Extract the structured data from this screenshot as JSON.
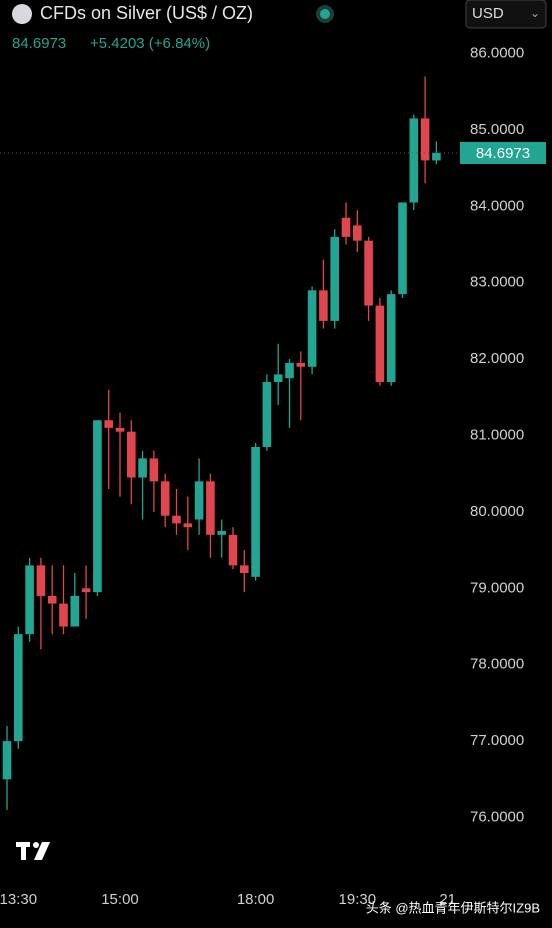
{
  "header": {
    "title": "CFDs on Silver (US$ / OZ)",
    "change": "+5.4203 (+6.84%)",
    "currency": "USD"
  },
  "watermark": "头条 @热血青年伊斯特尔IZ9B",
  "chart_data": {
    "type": "candlestick",
    "categories": [
      null,
      "13:30",
      null,
      null,
      null,
      null,
      null,
      null,
      null,
      null,
      "15:00",
      null,
      null,
      null,
      null,
      null,
      null,
      null,
      null,
      null,
      null,
      null,
      "18:00",
      null,
      null,
      null,
      null,
      null,
      null,
      null,
      null,
      "19:30",
      null,
      null,
      null,
      null,
      null,
      null,
      null,
      "21"
    ],
    "open": [
      76.5,
      77.0,
      78.4,
      79.3,
      78.9,
      78.8,
      78.5,
      79.0,
      78.95,
      81.2,
      81.1,
      81.05,
      80.45,
      80.7,
      80.4,
      79.95,
      79.85,
      79.9,
      80.4,
      79.7,
      79.7,
      79.3,
      79.15,
      80.85,
      81.7,
      81.75,
      81.95,
      81.9,
      82.9,
      82.5,
      83.85,
      83.75,
      83.55,
      82.7,
      81.7,
      82.85,
      84.05,
      85.15,
      84.6,
      null
    ],
    "high": [
      77.2,
      78.5,
      79.4,
      79.4,
      79.3,
      79.3,
      79.2,
      79.3,
      81.2,
      81.6,
      81.3,
      81.2,
      80.8,
      80.8,
      80.5,
      80.3,
      80.2,
      80.7,
      80.5,
      79.9,
      79.8,
      79.5,
      80.9,
      81.8,
      82.2,
      82.0,
      82.1,
      82.95,
      83.3,
      83.7,
      84.05,
      83.95,
      83.6,
      82.8,
      82.9,
      84.05,
      85.2,
      85.7,
      84.85,
      null
    ],
    "low": [
      76.1,
      76.9,
      78.3,
      78.2,
      78.4,
      78.4,
      78.5,
      78.6,
      78.9,
      80.3,
      80.2,
      80.1,
      79.9,
      80.0,
      79.8,
      79.7,
      79.5,
      79.7,
      79.4,
      79.4,
      79.25,
      78.95,
      79.1,
      80.8,
      81.4,
      81.1,
      81.2,
      81.8,
      82.4,
      82.4,
      83.5,
      83.4,
      82.5,
      81.65,
      81.65,
      82.8,
      83.95,
      84.3,
      84.55,
      null
    ],
    "close": [
      77.0,
      78.4,
      79.3,
      78.9,
      78.8,
      78.5,
      78.9,
      78.95,
      81.2,
      81.1,
      81.05,
      80.45,
      80.7,
      80.4,
      79.95,
      79.85,
      79.8,
      80.4,
      79.7,
      79.75,
      79.3,
      79.2,
      80.85,
      81.7,
      81.8,
      81.95,
      81.9,
      82.9,
      82.5,
      83.6,
      83.6,
      83.55,
      82.7,
      81.7,
      82.85,
      84.05,
      85.15,
      84.6,
      84.7,
      null
    ],
    "up_color": "#22a592",
    "down_color": "#e0464e",
    "last_price": 84.6973,
    "ylim": [
      75.3,
      86.7
    ],
    "yticks": [
      {
        "value": 76,
        "label": "76.0000"
      },
      {
        "value": 77,
        "label": "77.0000"
      },
      {
        "value": 78,
        "label": "78.0000"
      },
      {
        "value": 79,
        "label": "79.0000"
      },
      {
        "value": 80,
        "label": "80.0000"
      },
      {
        "value": 81,
        "label": "81.0000"
      },
      {
        "value": 82,
        "label": "82.0000"
      },
      {
        "value": 83,
        "label": "83.0000"
      },
      {
        "value": 84,
        "label": "84.0000"
      },
      {
        "value": 85,
        "label": "85.0000"
      },
      {
        "value": 86,
        "label": "86.0000"
      }
    ],
    "grid": false
  }
}
